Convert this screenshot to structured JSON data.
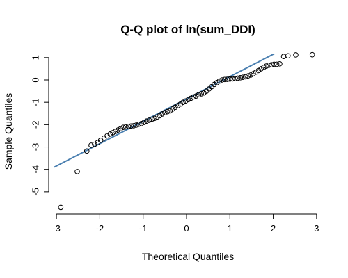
{
  "chart_data": {
    "type": "scatter",
    "title": "Q-Q plot of ln(sum_DDI)",
    "xlabel": "Theoretical Quantiles",
    "ylabel": "Sample Quantiles",
    "xlim": [
      -3.05,
      3.05
    ],
    "ylim": [
      -5.75,
      1.15
    ],
    "xticks": [
      -3,
      -2,
      -1,
      0,
      1,
      2,
      3
    ],
    "yticks": [
      -5,
      -4,
      -3,
      -2,
      -1,
      0,
      1
    ],
    "xtick_labels": [
      "-3",
      "-2",
      "-1",
      "0",
      "1",
      "2",
      "3"
    ],
    "ytick_labels": [
      "-5",
      "-4",
      "-3",
      "-2",
      "-1",
      "0",
      "1"
    ],
    "reference_line": {
      "intercept": -0.85,
      "slope": 1.0,
      "color": "#4a7fb0"
    },
    "marker": "open-circle",
    "points": [
      [
        -2.9,
        -5.7
      ],
      [
        -2.52,
        -4.1
      ],
      [
        -2.3,
        -3.18
      ],
      [
        -2.2,
        -2.92
      ],
      [
        -2.12,
        -2.88
      ],
      [
        -2.05,
        -2.8
      ],
      [
        -1.98,
        -2.7
      ],
      [
        -1.9,
        -2.6
      ],
      [
        -1.83,
        -2.5
      ],
      [
        -1.76,
        -2.42
      ],
      [
        -1.7,
        -2.36
      ],
      [
        -1.64,
        -2.3
      ],
      [
        -1.58,
        -2.24
      ],
      [
        -1.52,
        -2.18
      ],
      [
        -1.46,
        -2.12
      ],
      [
        -1.4,
        -2.1
      ],
      [
        -1.34,
        -2.08
      ],
      [
        -1.28,
        -2.06
      ],
      [
        -1.22,
        -2.05
      ],
      [
        -1.16,
        -2.02
      ],
      [
        -1.1,
        -1.98
      ],
      [
        -1.04,
        -1.95
      ],
      [
        -0.98,
        -1.9
      ],
      [
        -0.92,
        -1.84
      ],
      [
        -0.86,
        -1.8
      ],
      [
        -0.8,
        -1.76
      ],
      [
        -0.74,
        -1.72
      ],
      [
        -0.68,
        -1.66
      ],
      [
        -0.62,
        -1.6
      ],
      [
        -0.56,
        -1.52
      ],
      [
        -0.5,
        -1.46
      ],
      [
        -0.44,
        -1.42
      ],
      [
        -0.38,
        -1.38
      ],
      [
        -0.32,
        -1.3
      ],
      [
        -0.26,
        -1.22
      ],
      [
        -0.2,
        -1.15
      ],
      [
        -0.14,
        -1.08
      ],
      [
        -0.08,
        -1.0
      ],
      [
        -0.02,
        -0.94
      ],
      [
        0.04,
        -0.88
      ],
      [
        0.1,
        -0.82
      ],
      [
        0.16,
        -0.76
      ],
      [
        0.22,
        -0.72
      ],
      [
        0.28,
        -0.66
      ],
      [
        0.34,
        -0.62
      ],
      [
        0.4,
        -0.58
      ],
      [
        0.46,
        -0.5
      ],
      [
        0.52,
        -0.4
      ],
      [
        0.58,
        -0.3
      ],
      [
        0.64,
        -0.2
      ],
      [
        0.7,
        -0.12
      ],
      [
        0.76,
        -0.05
      ],
      [
        0.82,
        0.0
      ],
      [
        0.88,
        0.02
      ],
      [
        0.94,
        0.03
      ],
      [
        1.0,
        0.04
      ],
      [
        1.06,
        0.05
      ],
      [
        1.12,
        0.06
      ],
      [
        1.18,
        0.08
      ],
      [
        1.24,
        0.1
      ],
      [
        1.3,
        0.12
      ],
      [
        1.36,
        0.14
      ],
      [
        1.42,
        0.18
      ],
      [
        1.48,
        0.22
      ],
      [
        1.54,
        0.28
      ],
      [
        1.6,
        0.35
      ],
      [
        1.66,
        0.42
      ],
      [
        1.72,
        0.5
      ],
      [
        1.78,
        0.56
      ],
      [
        1.84,
        0.62
      ],
      [
        1.9,
        0.66
      ],
      [
        1.96,
        0.68
      ],
      [
        2.02,
        0.7
      ],
      [
        2.08,
        0.7
      ],
      [
        2.15,
        0.72
      ],
      [
        2.24,
        1.05
      ],
      [
        2.34,
        1.08
      ],
      [
        2.52,
        1.12
      ],
      [
        2.9,
        1.13
      ]
    ]
  }
}
